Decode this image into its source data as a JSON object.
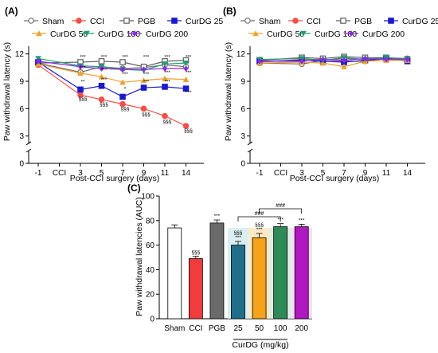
{
  "panels": [
    {
      "label": "(A)",
      "chart_data": {
        "type": "line",
        "x_tick_labels": [
          "-1",
          "CCI",
          "3",
          "5",
          "7",
          "9",
          "11",
          "14"
        ],
        "xlabel": "Post-CCI surgery (days)",
        "ylabel": "Paw withdrawal latency (s)",
        "y_ticks": [
          "0",
          "3",
          "6",
          "9",
          "12"
        ],
        "ylim": [
          0,
          12.5
        ],
        "axis_break": true,
        "legend": "top",
        "series": [
          {
            "name": "Sham",
            "color": "#707070",
            "marker": "circle-open",
            "x": [
              "-1",
              "3",
              "5",
              "7",
              "9",
              "11",
              "14"
            ],
            "y": [
              11.0,
              10.0,
              10.6,
              10.4,
              10.5,
              10.8,
              10.6
            ]
          },
          {
            "name": "CCI",
            "color": "#f0504a",
            "marker": "circle-filled",
            "x": [
              "-1",
              "3",
              "5",
              "7",
              "9",
              "11",
              "14"
            ],
            "y": [
              10.8,
              7.5,
              7.0,
              6.5,
              6.0,
              5.2,
              4.1
            ]
          },
          {
            "name": "PGB",
            "color": "#606060",
            "marker": "square-open",
            "x": [
              "-1",
              "3",
              "5",
              "7",
              "9",
              "11",
              "14"
            ],
            "y": [
              11.0,
              11.1,
              11.2,
              11.1,
              10.6,
              11.2,
              11.3
            ]
          },
          {
            "name": "CurDG 25",
            "color": "#1a1ac8",
            "marker": "square-filled",
            "x": [
              "-1",
              "3",
              "5",
              "7",
              "9",
              "11",
              "14"
            ],
            "y": [
              11.1,
              8.1,
              8.5,
              7.3,
              8.3,
              8.4,
              8.2
            ]
          },
          {
            "name": "CurDG 50",
            "color": "#f0a030",
            "marker": "triangle-up",
            "x": [
              "-1",
              "3",
              "5",
              "7",
              "9",
              "11",
              "14"
            ],
            "y": [
              10.9,
              9.9,
              9.5,
              8.9,
              9.1,
              9.3,
              9.2
            ]
          },
          {
            "name": "CurDG 100",
            "color": "#20a070",
            "marker": "triangle-down",
            "x": [
              "-1",
              "3",
              "5",
              "7",
              "9",
              "11",
              "14"
            ],
            "y": [
              11.5,
              10.7,
              10.6,
              10.3,
              10.2,
              10.9,
              11.0
            ]
          },
          {
            "name": "CurDG 200",
            "color": "#8a2be2",
            "marker": "diamond",
            "x": [
              "-1",
              "3",
              "5",
              "7",
              "9",
              "11",
              "14"
            ],
            "y": [
              11.2,
              10.6,
              10.4,
              10.3,
              10.3,
              10.4,
              10.4
            ]
          }
        ],
        "annotations": [
          {
            "text": "***",
            "x": "3",
            "y": 11.5
          },
          {
            "text": "***",
            "x": "5",
            "y": 11.5
          },
          {
            "text": "***",
            "x": "7",
            "y": 11.5
          },
          {
            "text": "***",
            "x": "9",
            "y": 11.5
          },
          {
            "text": "***",
            "x": "11",
            "y": 11.5
          },
          {
            "text": "***",
            "x": "14",
            "y": 11.5
          },
          {
            "text": "***",
            "x": "3",
            "y": 10.3
          },
          {
            "text": "***",
            "x": "5",
            "y": 10.1
          },
          {
            "text": "***",
            "x": "7",
            "y": 9.6
          },
          {
            "text": "***",
            "x": "9",
            "y": 9.6
          },
          {
            "text": "***",
            "x": "11",
            "y": 9.8
          },
          {
            "text": "***",
            "x": "14",
            "y": 9.8
          },
          {
            "text": "**",
            "x": "3",
            "y": 8.8
          },
          {
            "text": "***",
            "x": "5",
            "y": 9.0
          },
          {
            "text": "*",
            "x": "7",
            "y": 8.0
          },
          {
            "text": "***",
            "x": "9",
            "y": 8.8
          },
          {
            "text": "***",
            "x": "11",
            "y": 8.8
          },
          {
            "text": "***",
            "x": "14",
            "y": 7.6
          },
          {
            "text": "§§§",
            "x": "3",
            "y": 6.9
          },
          {
            "text": "§§§",
            "x": "5",
            "y": 6.3
          },
          {
            "text": "§§§",
            "x": "7",
            "y": 5.8
          },
          {
            "text": "§§§",
            "x": "9",
            "y": 5.2
          },
          {
            "text": "§§§",
            "x": "11",
            "y": 4.4
          },
          {
            "text": "§§§",
            "x": "14",
            "y": 3.4
          }
        ]
      }
    },
    {
      "label": "(B)",
      "chart_data": {
        "type": "line",
        "x_tick_labels": [
          "-1",
          "CCI",
          "3",
          "5",
          "7",
          "9",
          "11",
          "14"
        ],
        "xlabel": "Post-CCI surgery (days)",
        "ylabel": "Paw withdrawal latency (s)",
        "y_ticks": [
          "0",
          "3",
          "6",
          "9",
          "12"
        ],
        "ylim": [
          0,
          12.5
        ],
        "axis_break": true,
        "legend": "top",
        "series": [
          {
            "name": "Sham",
            "color": "#707070",
            "marker": "circle-open",
            "x": [
              "-1",
              "3",
              "5",
              "7",
              "9",
              "11",
              "14"
            ],
            "y": [
              11.0,
              10.9,
              11.3,
              11.5,
              11.4,
              11.6,
              11.3
            ]
          },
          {
            "name": "CCI",
            "color": "#f0504a",
            "marker": "circle-filled",
            "x": [
              "-1",
              "3",
              "5",
              "7",
              "9",
              "11",
              "14"
            ],
            "y": [
              11.1,
              11.4,
              11.4,
              11.2,
              11.2,
              11.5,
              11.5
            ]
          },
          {
            "name": "PGB",
            "color": "#606060",
            "marker": "square-open",
            "x": [
              "-1",
              "3",
              "5",
              "7",
              "9",
              "11",
              "14"
            ],
            "y": [
              11.3,
              11.6,
              11.5,
              11.7,
              11.6,
              11.6,
              11.4
            ]
          },
          {
            "name": "CurDG 25",
            "color": "#1a1ac8",
            "marker": "square-filled",
            "x": [
              "-1",
              "3",
              "5",
              "7",
              "9",
              "11",
              "14"
            ],
            "y": [
              11.2,
              11.3,
              11.2,
              11.1,
              11.3,
              11.5,
              11.2
            ]
          },
          {
            "name": "CurDG 50",
            "color": "#f0a030",
            "marker": "triangle-up",
            "x": [
              "-1",
              "3",
              "5",
              "7",
              "9",
              "11",
              "14"
            ],
            "y": [
              11.0,
              11.1,
              11.0,
              10.6,
              11.2,
              11.3,
              11.3
            ]
          },
          {
            "name": "CurDG 100",
            "color": "#20a070",
            "marker": "triangle-down",
            "x": [
              "-1",
              "3",
              "5",
              "7",
              "9",
              "11",
              "14"
            ],
            "y": [
              11.4,
              11.5,
              11.3,
              11.6,
              11.4,
              11.6,
              11.5
            ]
          },
          {
            "name": "CurDG 200",
            "color": "#8a2be2",
            "marker": "diamond",
            "x": [
              "-1",
              "3",
              "5",
              "7",
              "9",
              "11",
              "14"
            ],
            "y": [
              11.2,
              11.2,
              11.4,
              11.3,
              11.5,
              11.4,
              11.4
            ]
          }
        ]
      }
    },
    {
      "label": "(C)",
      "chart_data": {
        "type": "bar",
        "categories": [
          "Sham",
          "CCI",
          "PGB",
          "25",
          "50",
          "100",
          "200"
        ],
        "values": [
          74,
          49,
          78,
          60,
          66,
          75,
          75
        ],
        "errors": [
          2.5,
          2.0,
          2.5,
          3.0,
          3.5,
          2.5,
          2.0
        ],
        "colors": [
          "#ffffff",
          "#f03c3c",
          "#6a6a6a",
          "#1f6f8b",
          "#f5a31a",
          "#2e8b57",
          "#b018c0"
        ],
        "highlight_colors": [
          "#cde9ec",
          "#fbe3b4",
          "#cfe9d8",
          "#f5d0f5"
        ],
        "ylabel": "Paw withdrawal latencies (AUC)",
        "group_label": "CurDG (mg/kg)",
        "y_ticks": [
          "0",
          "20",
          "40",
          "60",
          "80",
          "100"
        ],
        "ylim": [
          0,
          100
        ],
        "bar_labels": [
          {
            "category": "CCI",
            "text": "§§§"
          },
          {
            "category": "PGB",
            "text": "***"
          },
          {
            "category": "25",
            "text": "***"
          },
          {
            "category": "25",
            "text": "§§§"
          },
          {
            "category": "50",
            "text": "***"
          },
          {
            "category": "50",
            "text": "§§§"
          },
          {
            "category": "100",
            "text": "***"
          },
          {
            "category": "200",
            "text": "***"
          }
        ],
        "brackets": [
          {
            "from": "25",
            "to": "100",
            "text": "###"
          },
          {
            "from": "50",
            "to": "200",
            "text": "###"
          }
        ]
      }
    }
  ]
}
